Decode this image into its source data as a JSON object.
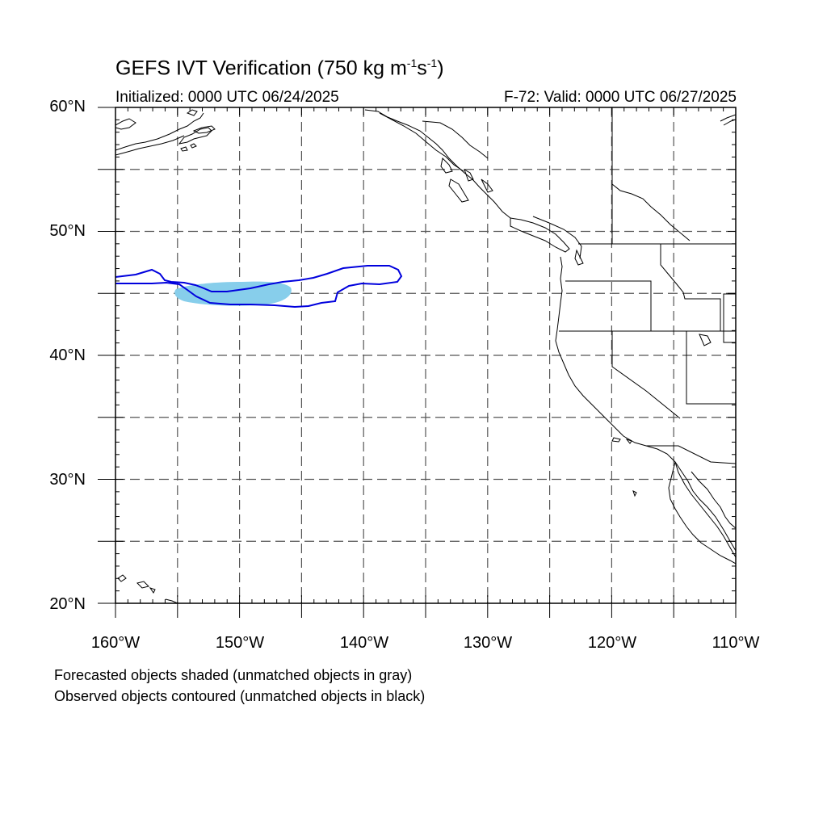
{
  "title": {
    "main": "GEFS IVT Verification (750 kg m",
    "sup1": "-1",
    "mid": "s",
    "sup2": "-1",
    "end": ")"
  },
  "subtitle_left": "Initialized: 0000 UTC 06/24/2025",
  "subtitle_right": "F-72: Valid: 0000 UTC 06/27/2025",
  "lat_labels": [
    "60°N",
    "50°N",
    "40°N",
    "30°N",
    "20°N"
  ],
  "lon_labels": [
    "160°W",
    "150°W",
    "140°W",
    "130°W",
    "120°W",
    "110°W"
  ],
  "notes": [
    "Forecasted objects shaded (unmatched objects in gray)",
    "Observed objects contoured (unmatched objects in black)"
  ],
  "map": {
    "lon_range": [
      -160,
      -110
    ],
    "lat_range": [
      20,
      60
    ],
    "grid_step_deg": 5,
    "grid": "dashed",
    "colors": {
      "forecast_fill": "#87ceeb",
      "observed_contour": "#0000dd",
      "coastline": "#000000"
    }
  }
}
